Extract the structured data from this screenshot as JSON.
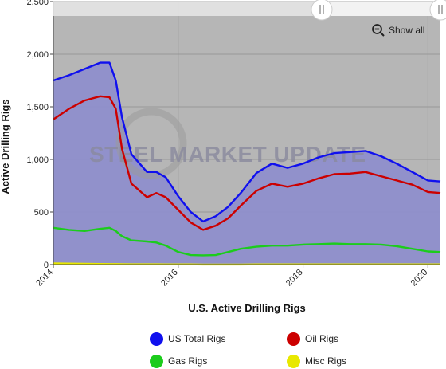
{
  "chart_data": {
    "type": "area",
    "title": "",
    "xlabel": "U.S. Active Drilling Rigs",
    "ylabel": "Active Drilling Rigs",
    "xlim": [
      2014.0,
      2020.2
    ],
    "ylim": [
      0,
      2500
    ],
    "x_ticks": [
      2014,
      2016,
      2018,
      2020
    ],
    "y_ticks": [
      0,
      500,
      1000,
      1500,
      2000,
      2500
    ],
    "y_tick_labels": [
      "0",
      "500",
      "1,000",
      "1,500",
      "2,000",
      "2,500"
    ],
    "x_tick_labels": [
      "2014",
      "2016",
      "2018",
      "2020"
    ],
    "grid": true,
    "legend_position": "bottom",
    "watermark": "STEEL MARKET UPDATE",
    "x": [
      2014.0,
      2014.25,
      2014.5,
      2014.75,
      2014.9,
      2015.0,
      2015.1,
      2015.25,
      2015.5,
      2015.65,
      2015.8,
      2016.0,
      2016.2,
      2016.4,
      2016.6,
      2016.8,
      2017.0,
      2017.25,
      2017.5,
      2017.75,
      2018.0,
      2018.25,
      2018.5,
      2018.75,
      2019.0,
      2019.25,
      2019.5,
      2019.75,
      2020.0,
      2020.2
    ],
    "series": [
      {
        "name": "US Total Rigs",
        "color": "#1010ee",
        "values": [
          1750,
          1800,
          1860,
          1920,
          1920,
          1750,
          1400,
          1050,
          880,
          880,
          830,
          650,
          500,
          410,
          460,
          550,
          680,
          870,
          960,
          920,
          960,
          1020,
          1060,
          1070,
          1080,
          1030,
          960,
          880,
          800,
          790
        ]
      },
      {
        "name": "Oil Rigs",
        "color": "#cc0000",
        "values": [
          1380,
          1480,
          1560,
          1600,
          1590,
          1480,
          1100,
          770,
          640,
          680,
          640,
          520,
          400,
          330,
          370,
          440,
          560,
          700,
          770,
          740,
          770,
          820,
          860,
          865,
          880,
          840,
          800,
          760,
          690,
          680
        ]
      },
      {
        "name": "Gas Rigs",
        "color": "#1ccc1c",
        "values": [
          350,
          330,
          320,
          340,
          350,
          320,
          270,
          230,
          220,
          210,
          180,
          120,
          90,
          88,
          90,
          120,
          150,
          170,
          180,
          180,
          190,
          195,
          200,
          195,
          195,
          190,
          175,
          150,
          125,
          120
        ]
      },
      {
        "name": "Misc Rigs",
        "color": "#e8e800",
        "values": [
          12,
          10,
          8,
          6,
          5,
          5,
          4,
          3,
          3,
          3,
          2,
          2,
          2,
          1,
          1,
          1,
          1,
          2,
          2,
          2,
          2,
          2,
          2,
          2,
          2,
          2,
          2,
          2,
          2,
          2
        ]
      }
    ]
  },
  "controls": {
    "show_all_label": "Show all",
    "zoom_icon": "zoom-out-icon"
  }
}
